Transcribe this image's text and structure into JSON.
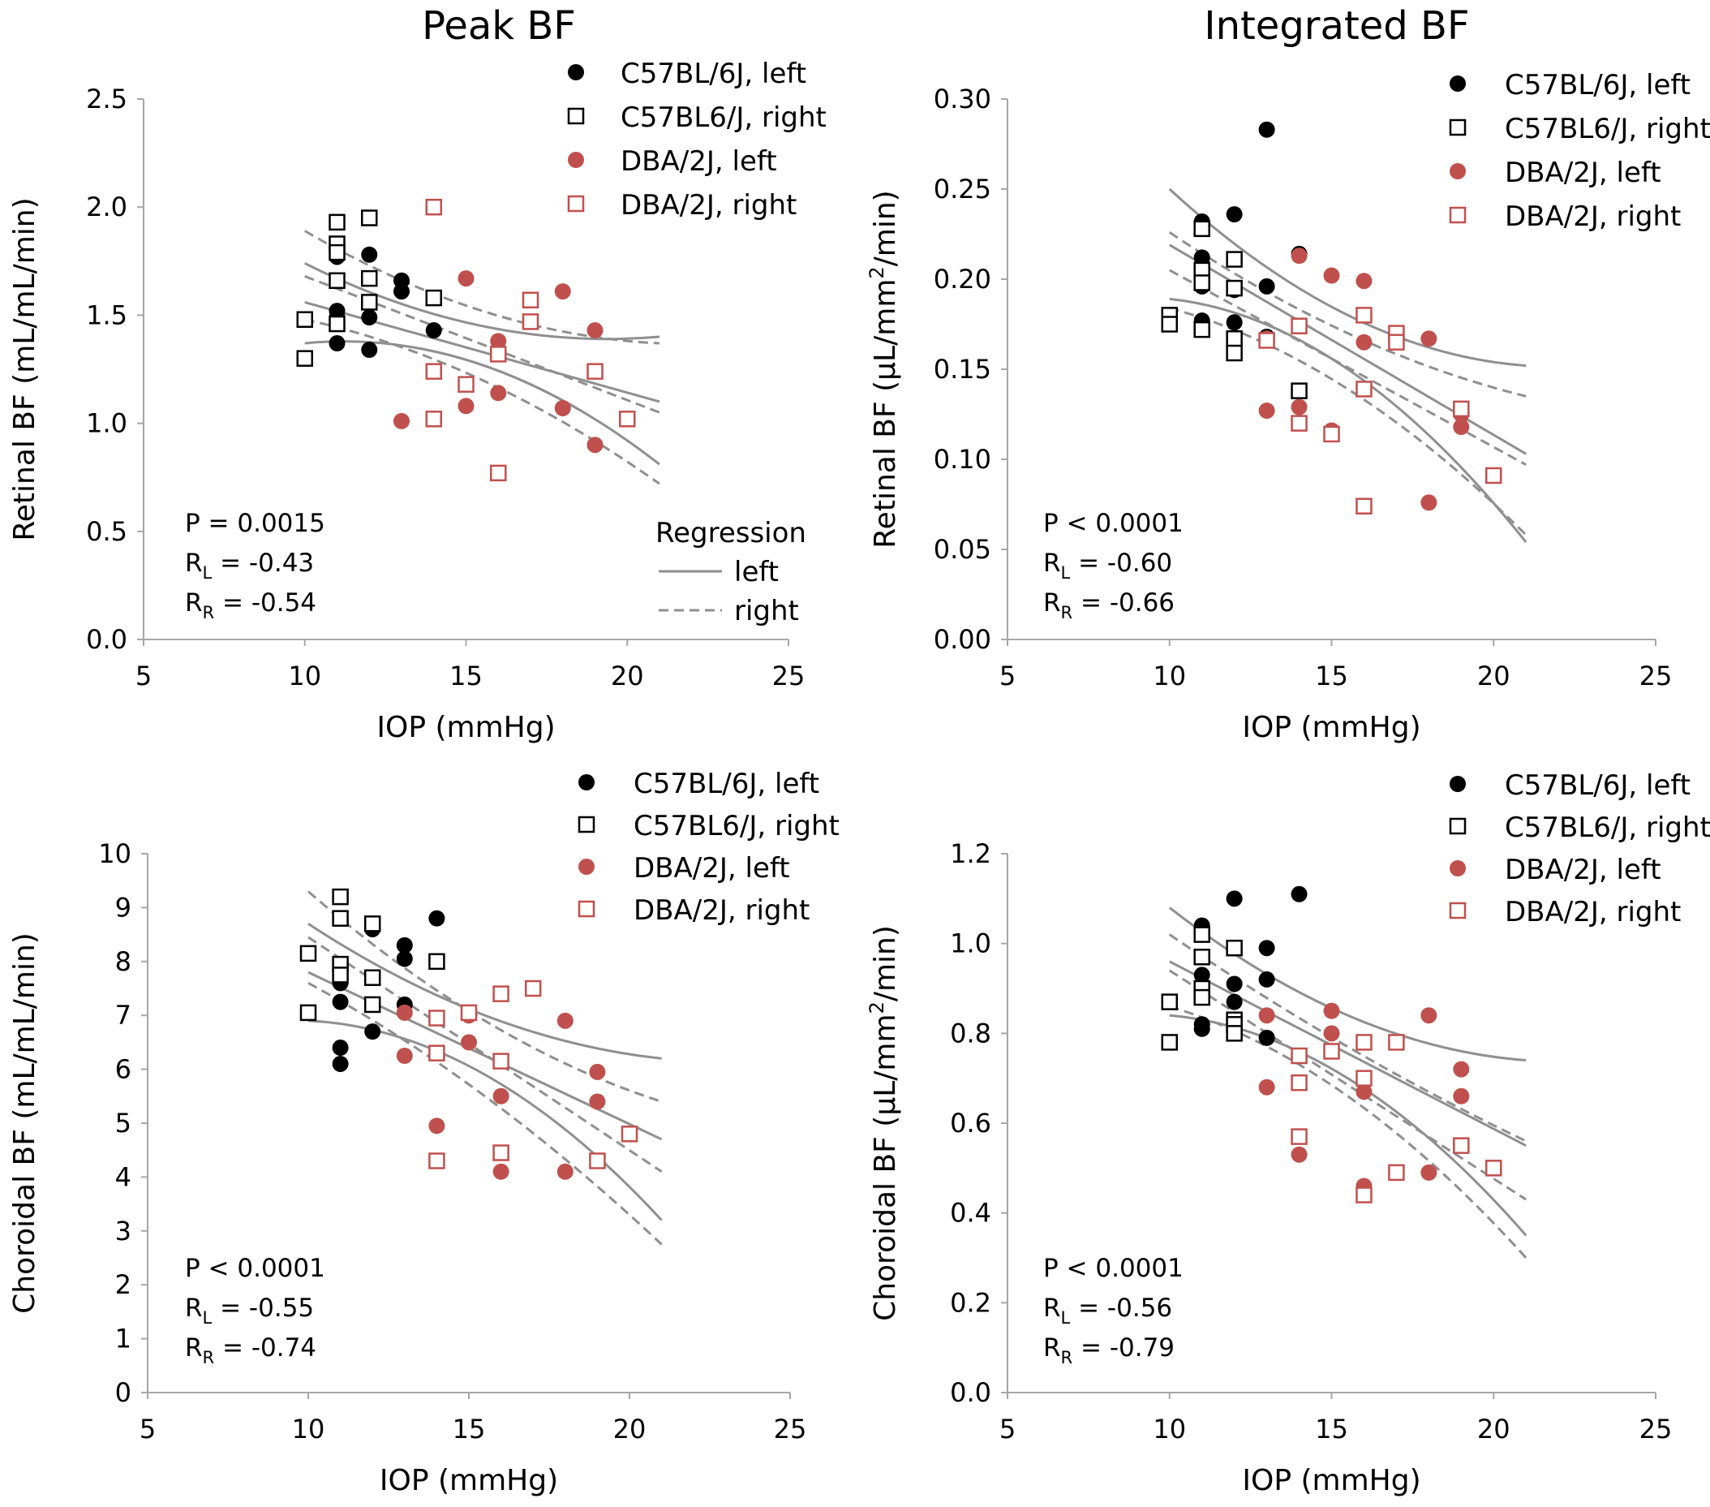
{
  "column_titles": [
    "Peak BF",
    "Integrated BF"
  ],
  "colors": {
    "black": "#000000",
    "red": "#c0504d",
    "regression": "#8f8f8f",
    "axis": "#a6a6a6"
  },
  "legend": {
    "series_labels": [
      "C57BL/6J, left",
      "C57BL6/J, right",
      "DBA/2J, left",
      "DBA/2J, right"
    ],
    "regression_title": "Regression",
    "regression_left": "left",
    "regression_right": "right"
  },
  "chart_data": [
    {
      "type": "scatter",
      "title": "Peak BF",
      "xlabel": "IOP (mmHg)",
      "ylabel": "Retinal BF (mL/mL/min)",
      "xlim": [
        5,
        25
      ],
      "ylim": [
        0,
        2.5
      ],
      "xticks": [
        5,
        10,
        15,
        20,
        25
      ],
      "yticks": [
        0,
        0.5,
        1.0,
        1.5,
        2.0,
        2.5
      ],
      "ytick_labels": [
        "0.0",
        "0.5",
        "1.0",
        "1.5",
        "2.0",
        "2.5"
      ],
      "stats": {
        "p": "P = 0.0015",
        "rl_prefix": "R",
        "rl_sub": "L",
        "rl_value": " = -0.43",
        "rr_prefix": "R",
        "rr_sub": "R",
        "rr_value": " = -0.54"
      },
      "series": [
        {
          "name": "C57BL/6J, left",
          "marker": "circle",
          "color": "#000000",
          "x": [
            11,
            11,
            11,
            11,
            12,
            12,
            12,
            13,
            13,
            14
          ],
          "y": [
            1.77,
            1.52,
            1.49,
            1.37,
            1.78,
            1.49,
            1.34,
            1.66,
            1.61,
            1.43
          ]
        },
        {
          "name": "C57BL6/J, right",
          "marker": "square",
          "color": "#000000",
          "x": [
            10,
            10,
            11,
            11,
            11,
            11,
            11,
            12,
            12,
            12,
            14
          ],
          "y": [
            1.48,
            1.3,
            1.93,
            1.83,
            1.79,
            1.66,
            1.46,
            1.95,
            1.67,
            1.56,
            1.58
          ]
        },
        {
          "name": "DBA/2J, left",
          "marker": "circle",
          "color": "#c0504d",
          "x": [
            13,
            14,
            15,
            15,
            16,
            16,
            18,
            18,
            19,
            19
          ],
          "y": [
            1.01,
            1.02,
            1.67,
            1.08,
            1.38,
            1.14,
            1.61,
            1.07,
            1.43,
            0.9
          ]
        },
        {
          "name": "DBA/2J, right",
          "marker": "square",
          "color": "#c0504d",
          "x": [
            14,
            14,
            14,
            15,
            16,
            16,
            17,
            17,
            19,
            20
          ],
          "y": [
            2.0,
            1.24,
            1.02,
            1.18,
            1.32,
            0.77,
            1.57,
            1.47,
            1.24,
            1.02
          ]
        }
      ],
      "regression": {
        "x_range": [
          10,
          21
        ],
        "left": {
          "fit": [
            [
              10,
              1.56
            ],
            [
              21,
              1.1
            ]
          ],
          "ci_upper": [
            [
              10,
              1.74
            ],
            [
              15.5,
              1.45
            ],
            [
              21,
              1.4
            ]
          ],
          "ci_lower": [
            [
              10,
              1.37
            ],
            [
              15.5,
              1.27
            ],
            [
              21,
              0.81
            ]
          ]
        },
        "right": {
          "fit": [
            [
              10,
              1.68
            ],
            [
              21,
              1.05
            ]
          ],
          "ci_upper": [
            [
              10,
              1.89
            ],
            [
              15.5,
              1.52
            ],
            [
              21,
              1.37
            ]
          ],
          "ci_lower": [
            [
              10,
              1.48
            ],
            [
              15.5,
              1.2
            ],
            [
              21,
              0.72
            ]
          ]
        }
      }
    },
    {
      "type": "scatter",
      "title": "Integrated BF",
      "xlabel": "IOP (mmHg)",
      "ylabel": "Retinal BF (µL/mm²/min)",
      "ylabel_parts": [
        "Retinal BF (µL/mm",
        "2",
        "/min)"
      ],
      "xlim": [
        5,
        25
      ],
      "ylim": [
        0,
        0.3
      ],
      "xticks": [
        5,
        10,
        15,
        20,
        25
      ],
      "yticks": [
        0,
        0.05,
        0.1,
        0.15,
        0.2,
        0.25,
        0.3
      ],
      "ytick_labels": [
        "0.00",
        "0.05",
        "0.10",
        "0.15",
        "0.20",
        "0.25",
        "0.30"
      ],
      "stats": {
        "p": "P < 0.0001",
        "rl_prefix": "R",
        "rl_sub": "L",
        "rl_value": " = -0.60",
        "rr_prefix": "R",
        "rr_sub": "R",
        "rr_value": " = -0.66"
      },
      "series": [
        {
          "name": "C57BL/6J, left",
          "marker": "circle",
          "color": "#000000",
          "x": [
            11,
            11,
            11,
            11,
            11,
            12,
            12,
            12,
            13,
            13,
            13,
            14
          ],
          "y": [
            0.232,
            0.212,
            0.208,
            0.196,
            0.177,
            0.236,
            0.194,
            0.176,
            0.283,
            0.196,
            0.168,
            0.214
          ]
        },
        {
          "name": "C57BL6/J, right",
          "marker": "square",
          "color": "#000000",
          "x": [
            10,
            10,
            11,
            11,
            11,
            11,
            12,
            12,
            12,
            12,
            14
          ],
          "y": [
            0.18,
            0.175,
            0.228,
            0.205,
            0.198,
            0.172,
            0.211,
            0.195,
            0.167,
            0.159,
            0.138
          ]
        },
        {
          "name": "DBA/2J, left",
          "marker": "circle",
          "color": "#c0504d",
          "x": [
            13,
            13,
            14,
            14,
            15,
            15,
            16,
            16,
            18,
            18,
            19,
            19
          ],
          "y": [
            0.167,
            0.127,
            0.213,
            0.129,
            0.202,
            0.116,
            0.199,
            0.165,
            0.167,
            0.076,
            0.125,
            0.118
          ]
        },
        {
          "name": "DBA/2J, right",
          "marker": "square",
          "color": "#c0504d",
          "x": [
            13,
            14,
            14,
            15,
            16,
            16,
            16,
            17,
            17,
            19,
            20
          ],
          "y": [
            0.166,
            0.174,
            0.12,
            0.114,
            0.18,
            0.139,
            0.074,
            0.17,
            0.165,
            0.128,
            0.091
          ]
        }
      ],
      "regression": {
        "x_range": [
          10,
          21
        ],
        "left": {
          "fit": [
            [
              10,
              0.219
            ],
            [
              21,
              0.103
            ]
          ],
          "ci_upper": [
            [
              10,
              0.25
            ],
            [
              15.5,
              0.18
            ],
            [
              21,
              0.152
            ]
          ],
          "ci_lower": [
            [
              10,
              0.189
            ],
            [
              15.5,
              0.15
            ],
            [
              21,
              0.054
            ]
          ]
        },
        "right": {
          "fit": [
            [
              10,
              0.205
            ],
            [
              21,
              0.097
            ]
          ],
          "ci_upper": [
            [
              10,
              0.226
            ],
            [
              15.5,
              0.17
            ],
            [
              21,
              0.135
            ]
          ],
          "ci_lower": [
            [
              10,
              0.184
            ],
            [
              15.5,
              0.139
            ],
            [
              21,
              0.058
            ]
          ]
        }
      }
    },
    {
      "type": "scatter",
      "title": "",
      "xlabel": "IOP (mmHg)",
      "ylabel": "Choroidal BF (mL/mL/min)",
      "xlim": [
        5,
        25
      ],
      "ylim": [
        0,
        10
      ],
      "xticks": [
        5,
        10,
        15,
        20,
        25
      ],
      "yticks": [
        0,
        1,
        2,
        3,
        4,
        5,
        6,
        7,
        8,
        9,
        10
      ],
      "ytick_labels": [
        "0",
        "1",
        "2",
        "3",
        "4",
        "5",
        "6",
        "7",
        "8",
        "9",
        "10"
      ],
      "stats": {
        "p": "P < 0.0001",
        "rl_prefix": "R",
        "rl_sub": "L",
        "rl_value": " = -0.55",
        "rr_prefix": "R",
        "rr_sub": "R",
        "rr_value": " = -0.74"
      },
      "series": [
        {
          "name": "C57BL/6J, left",
          "marker": "circle",
          "color": "#000000",
          "x": [
            11,
            11,
            11,
            11,
            11,
            12,
            12,
            12,
            13,
            13,
            13,
            14
          ],
          "y": [
            9.2,
            7.6,
            7.25,
            6.4,
            6.1,
            8.6,
            7.2,
            6.7,
            8.3,
            8.05,
            7.2,
            8.8
          ]
        },
        {
          "name": "C57BL6/J, right",
          "marker": "square",
          "color": "#000000",
          "x": [
            10,
            10,
            11,
            11,
            11,
            11,
            12,
            12,
            12,
            14
          ],
          "y": [
            8.15,
            7.05,
            9.2,
            8.8,
            7.95,
            7.75,
            8.7,
            7.7,
            7.2,
            8.0
          ]
        },
        {
          "name": "DBA/2J, left",
          "marker": "circle",
          "color": "#c0504d",
          "x": [
            13,
            13,
            14,
            15,
            15,
            16,
            16,
            18,
            18,
            19,
            19
          ],
          "y": [
            7.05,
            6.25,
            4.95,
            7.0,
            6.5,
            5.5,
            4.1,
            6.9,
            4.1,
            5.95,
            5.4
          ]
        },
        {
          "name": "DBA/2J, right",
          "marker": "square",
          "color": "#c0504d",
          "x": [
            14,
            14,
            14,
            15,
            16,
            16,
            16,
            17,
            19,
            20
          ],
          "y": [
            6.95,
            6.3,
            4.3,
            7.05,
            7.4,
            6.15,
            4.45,
            7.5,
            4.3,
            4.8
          ]
        }
      ],
      "regression": {
        "x_range": [
          10,
          21
        ],
        "left": {
          "fit": [
            [
              10,
              7.8
            ],
            [
              21,
              4.7
            ]
          ],
          "ci_upper": [
            [
              10,
              8.7
            ],
            [
              15.5,
              7.0
            ],
            [
              21,
              6.2
            ]
          ],
          "ci_lower": [
            [
              10,
              6.9
            ],
            [
              15.5,
              5.9
            ],
            [
              21,
              3.2
            ]
          ]
        },
        "right": {
          "fit": [
            [
              10,
              8.45
            ],
            [
              21,
              4.1
            ]
          ],
          "ci_upper": [
            [
              10,
              9.3
            ],
            [
              15.5,
              6.9
            ],
            [
              21,
              5.4
            ]
          ],
          "ci_lower": [
            [
              10,
              7.6
            ],
            [
              15.5,
              5.5
            ],
            [
              21,
              2.75
            ]
          ]
        }
      }
    },
    {
      "type": "scatter",
      "title": "",
      "xlabel": "IOP (mmHg)",
      "ylabel": "Choroidal BF (µL/mm²/min)",
      "ylabel_parts": [
        "Choroidal BF (µL/mm",
        "2",
        "/min)"
      ],
      "xlim": [
        5,
        25
      ],
      "ylim": [
        0,
        1.2
      ],
      "xticks": [
        5,
        10,
        15,
        20,
        25
      ],
      "yticks": [
        0,
        0.2,
        0.4,
        0.6,
        0.8,
        1.0,
        1.2
      ],
      "ytick_labels": [
        "0.0",
        "0.2",
        "0.4",
        "0.6",
        "0.8",
        "1.0",
        "1.2"
      ],
      "stats": {
        "p": "P < 0.0001",
        "rl_prefix": "R",
        "rl_sub": "L",
        "rl_value": " = -0.56",
        "rr_prefix": "R",
        "rr_sub": "R",
        "rr_value": " = -0.79"
      },
      "series": [
        {
          "name": "C57BL/6J, left",
          "marker": "circle",
          "color": "#000000",
          "x": [
            11,
            11,
            11,
            11,
            11,
            12,
            12,
            12,
            13,
            13,
            13,
            14
          ],
          "y": [
            1.04,
            0.93,
            0.88,
            0.82,
            0.81,
            1.1,
            0.91,
            0.87,
            0.99,
            0.92,
            0.79,
            1.11
          ]
        },
        {
          "name": "C57BL6/J, right",
          "marker": "square",
          "color": "#000000",
          "x": [
            10,
            10,
            11,
            11,
            11,
            11,
            12,
            12,
            12,
            12
          ],
          "y": [
            0.87,
            0.78,
            1.02,
            0.97,
            0.9,
            0.88,
            0.99,
            0.83,
            0.82,
            0.8
          ]
        },
        {
          "name": "DBA/2J, left",
          "marker": "circle",
          "color": "#c0504d",
          "x": [
            13,
            13,
            14,
            15,
            15,
            16,
            16,
            18,
            18,
            19,
            19
          ],
          "y": [
            0.84,
            0.68,
            0.53,
            0.85,
            0.8,
            0.67,
            0.46,
            0.84,
            0.49,
            0.72,
            0.66
          ]
        },
        {
          "name": "DBA/2J, right",
          "marker": "square",
          "color": "#c0504d",
          "x": [
            14,
            14,
            14,
            15,
            16,
            16,
            16,
            17,
            17,
            19,
            20
          ],
          "y": [
            0.75,
            0.69,
            0.57,
            0.76,
            0.78,
            0.7,
            0.44,
            0.78,
            0.49,
            0.55,
            0.5
          ]
        }
      ],
      "regression": {
        "x_range": [
          10,
          21
        ],
        "left": {
          "fit": [
            [
              10,
              0.96
            ],
            [
              21,
              0.55
            ]
          ],
          "ci_upper": [
            [
              10,
              1.08
            ],
            [
              15.5,
              0.84
            ],
            [
              21,
              0.74
            ]
          ],
          "ci_lower": [
            [
              10,
              0.84
            ],
            [
              15.5,
              0.7
            ],
            [
              21,
              0.35
            ]
          ]
        },
        "right": {
          "fit": [
            [
              10,
              0.94
            ],
            [
              21,
              0.43
            ]
          ],
          "ci_upper": [
            [
              10,
              1.02
            ],
            [
              15.5,
              0.77
            ],
            [
              21,
              0.56
            ]
          ],
          "ci_lower": [
            [
              10,
              0.86
            ],
            [
              15.5,
              0.66
            ],
            [
              21,
              0.3
            ]
          ]
        }
      }
    }
  ]
}
